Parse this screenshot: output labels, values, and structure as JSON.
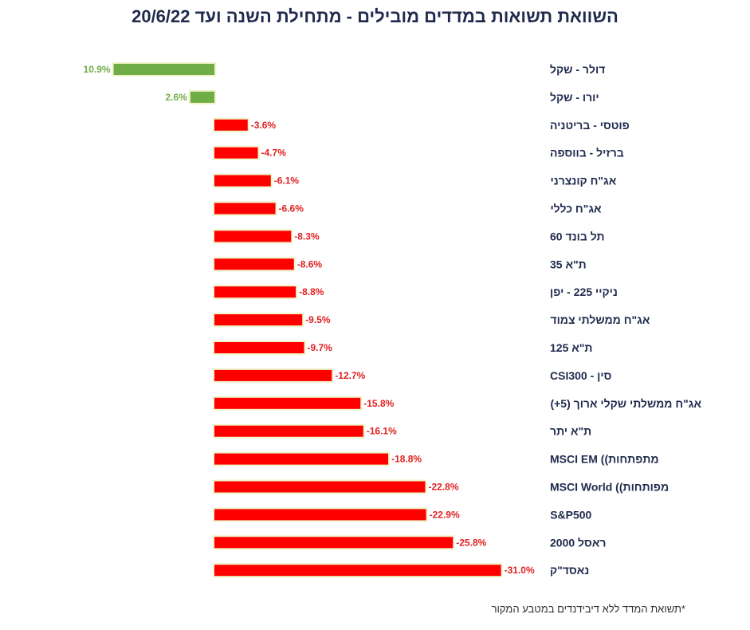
{
  "chart_data": {
    "type": "bar",
    "orientation": "horizontal",
    "title": "השוואת תשואות במדדים מובילים - מתחילת השנה ועד 20/6/22",
    "categories": [
      "דולר - שקל",
      "יורו - שקל",
      "פוטסי - בריטניה",
      "ברזיל - בווספה",
      "אג\"ח קונצרני",
      "אג\"ח כללי",
      "תל בונד 60",
      "ת\"א 35",
      "ניקיי 225 - יפן",
      "אג\"ח ממשלתי צמוד",
      "ת\"א 125",
      "סין - CSI300",
      "אג\"ח ממשלתי שקלי ארוך (5+)",
      "ת\"א יתר",
      "MSCI EM ((מתפתחות",
      "MSCI World ((מפותחות",
      "S&P500",
      "ראסל 2000",
      "נאסד\"ק"
    ],
    "values": [
      10.9,
      2.6,
      -3.6,
      -4.7,
      -6.1,
      -6.6,
      -8.3,
      -8.6,
      -8.8,
      -9.5,
      -9.7,
      -12.7,
      -15.8,
      -16.1,
      -18.8,
      -22.8,
      -22.9,
      -25.8,
      -31.0
    ],
    "data_labels": [
      "10.9%",
      "2.6%",
      "-3.6%",
      "-4.7%",
      "-6.1%",
      "-6.6%",
      "-8.3%",
      "-8.6%",
      "-8.8%",
      "-9.5%",
      "-9.7%",
      "-12.7%",
      "-15.8%",
      "-16.1%",
      "-18.8%",
      "-22.8%",
      "-22.9%",
      "-25.8%",
      "-31.0%"
    ],
    "xlabel": "",
    "ylabel": "",
    "grid": false,
    "colors": {
      "positive": "#70ad47",
      "negative": "#ff0000",
      "glow": "#eef5c8",
      "positive_label": "#70ad47",
      "negative_label": "#e02020",
      "category_label": "#1f2a4d"
    }
  },
  "footnote": "*תשואת המדד ללא דיבידנדים במטבע המקור"
}
